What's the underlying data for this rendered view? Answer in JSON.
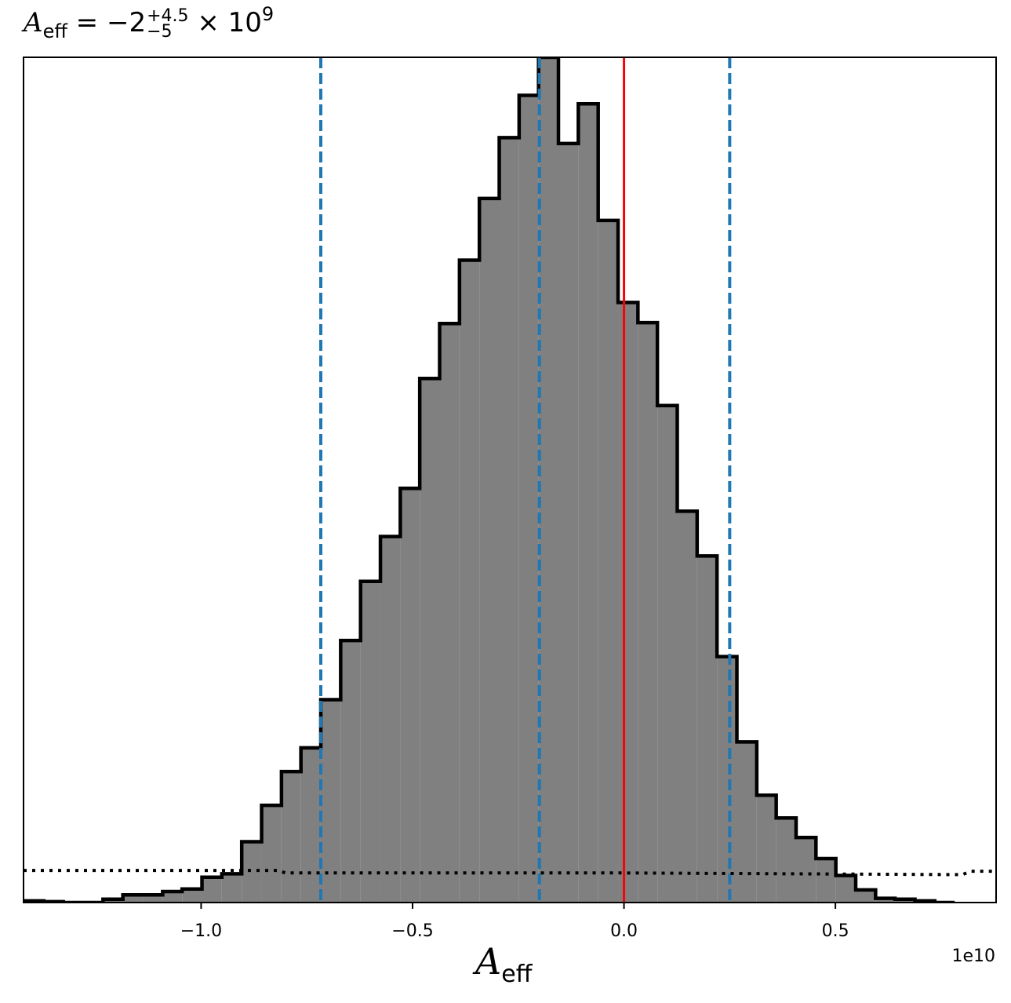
{
  "chart_data": {
    "type": "histogram",
    "title": {
      "symbol": "A",
      "symbol_sub": "eff",
      "equals": " = ",
      "value": "−2",
      "upper": "+4.5",
      "lower": "−5",
      "times": " × 10",
      "exponent": "9"
    },
    "xlabel": {
      "symbol": "A",
      "symbol_sub": "eff"
    },
    "x_offset_text": "1e10",
    "xlim": [
      -14200000000.0,
      8800000000.0
    ],
    "ylim": [
      0,
      1.0
    ],
    "xticks": [
      {
        "value": -10000000000.0,
        "label": "−1.0"
      },
      {
        "value": -5000000000.0,
        "label": "−0.5"
      },
      {
        "value": 0.0,
        "label": "0.0"
      },
      {
        "value": 5000000000.0,
        "label": "0.5"
      }
    ],
    "yticks_visible": false,
    "histogram": {
      "fill_color": "#808080",
      "edge_color": "#000000",
      "bin_edges": [
        -14660000000.0,
        -14190000000.0,
        -13720000000.0,
        -13260000000.0,
        -12790000000.0,
        -12320000000.0,
        -11850000000.0,
        -11380000000.0,
        -10910000000.0,
        -10450000000.0,
        -9980000000.0,
        -9510000000.0,
        -9040000000.0,
        -8570000000.0,
        -8100000000.0,
        -7640000000.0,
        -7170000000.0,
        -6700000000.0,
        -6230000000.0,
        -5760000000.0,
        -5290000000.0,
        -4830000000.0,
        -4360000000.0,
        -3890000000.0,
        -3420000000.0,
        -2950000000.0,
        -2480000000.0,
        -2020000000.0,
        -1550000000.0,
        -1080000000.0,
        -610000000.0,
        -140000000.0,
        330000000.0,
        790000000.0,
        1260000000.0,
        1730000000.0,
        2200000000.0,
        2670000000.0,
        3140000000.0,
        3600000000.0,
        4070000000.0,
        4540000000.0,
        5010000000.0,
        5480000000.0,
        5950000000.0,
        6410000000.0,
        6880000000.0,
        7350000000.0,
        7820000000.0
      ],
      "counts": [
        0.001,
        0.002,
        0.001,
        0.0,
        0.0,
        0.004,
        0.009,
        0.009,
        0.013,
        0.016,
        0.03,
        0.034,
        0.072,
        0.115,
        0.155,
        0.183,
        0.24,
        0.31,
        0.38,
        0.433,
        0.49,
        0.62,
        0.685,
        0.76,
        0.833,
        0.905,
        0.955,
        1.0,
        0.898,
        0.945,
        0.807,
        0.71,
        0.686,
        0.588,
        0.463,
        0.41,
        0.291,
        0.19,
        0.127,
        0.1,
        0.077,
        0.052,
        0.032,
        0.015,
        0.005,
        0.004,
        0.002,
        0.0
      ]
    },
    "vertical_lines": [
      {
        "x": -7170000000.0,
        "style": "dashed",
        "color": "#1f77b4",
        "role": "lower bound"
      },
      {
        "x": -2000000000.0,
        "style": "dashed",
        "color": "#1f77b4",
        "role": "median"
      },
      {
        "x": 2500000000.0,
        "style": "dashed",
        "color": "#1f77b4",
        "role": "upper bound"
      },
      {
        "x": 0.0,
        "style": "solid",
        "color": "#ff0000",
        "role": "reference"
      }
    ],
    "prior_curve": {
      "style": "dotted",
      "color": "#000000",
      "x": [
        -14200000000.0,
        -8200000000.0,
        -8000000000.0,
        0.0,
        8000000000.0,
        8200000000.0,
        8800000000.0
      ],
      "y": [
        0.038,
        0.038,
        0.035,
        0.035,
        0.033,
        0.037,
        0.037
      ]
    }
  }
}
